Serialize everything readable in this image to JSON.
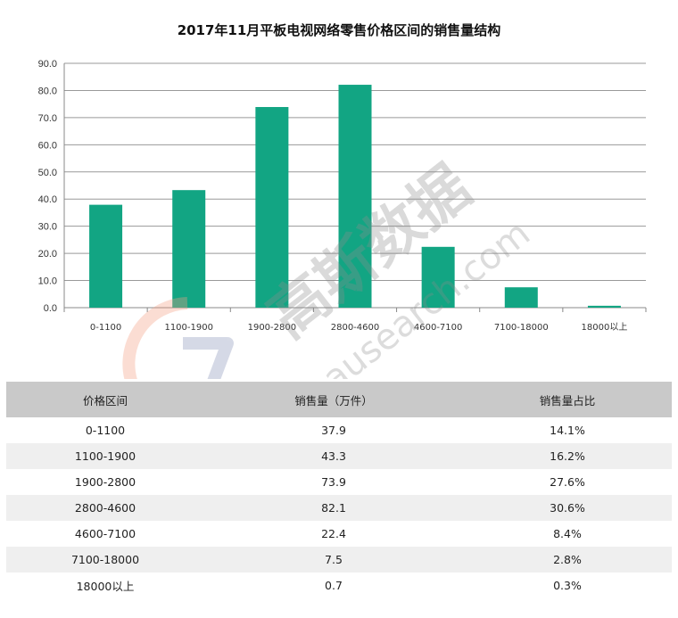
{
  "chart_data": {
    "type": "bar",
    "title": "2017年11月平板电视网络零售价格区间的销售量结构",
    "categories": [
      "0-1100",
      "1100-1900",
      "1900-2800",
      "2800-4600",
      "4600-7100",
      "7100-18000",
      "18000以上"
    ],
    "values": [
      37.9,
      43.3,
      73.9,
      82.1,
      22.4,
      7.5,
      0.7
    ],
    "ylim": [
      0,
      90
    ],
    "yticks": [
      "0.0",
      "10.0",
      "20.0",
      "30.0",
      "40.0",
      "50.0",
      "60.0",
      "70.0",
      "80.0",
      "90.0"
    ],
    "grid": "horizontal",
    "bar_color": "#12a583",
    "xlabel": "",
    "ylabel": ""
  },
  "watermark": {
    "text": "高斯数据",
    "sub": "gausearch.com"
  },
  "table": {
    "headers": [
      "价格区间",
      "销售量（万件）",
      "销售量占比"
    ],
    "rows": [
      [
        "0-1100",
        "37.9",
        "14.1%"
      ],
      [
        "1100-1900",
        "43.3",
        "16.2%"
      ],
      [
        "1900-2800",
        "73.9",
        "27.6%"
      ],
      [
        "2800-4600",
        "82.1",
        "30.6%"
      ],
      [
        "4600-7100",
        "22.4",
        "8.4%"
      ],
      [
        "7100-18000",
        "7.5",
        "2.8%"
      ],
      [
        "18000以上",
        "0.7",
        "0.3%"
      ]
    ]
  }
}
